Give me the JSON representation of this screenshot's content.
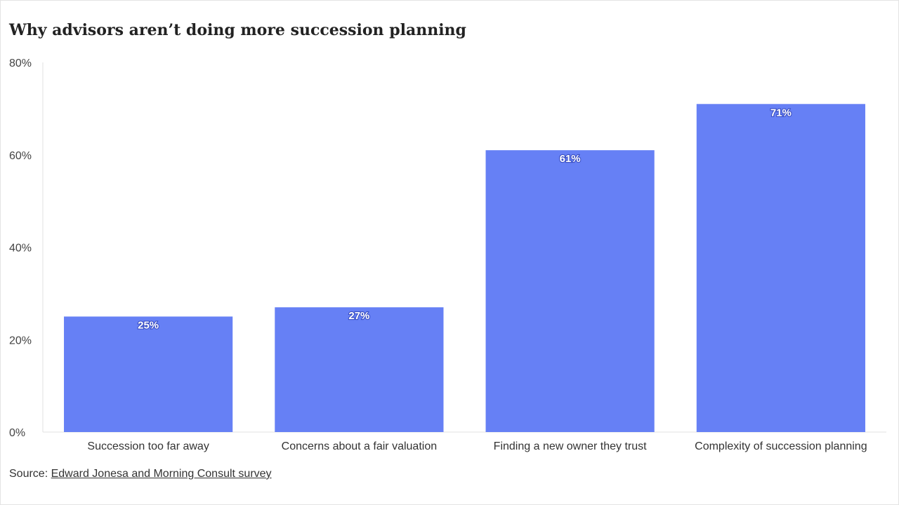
{
  "chart_data": {
    "type": "bar",
    "title": "Why advisors aren’t doing more succession planning",
    "categories": [
      "Succession too far away",
      "Concerns about a fair valuation",
      "Finding a new owner they trust",
      "Complexity of succession planning"
    ],
    "values": [
      25,
      27,
      61,
      71
    ],
    "value_labels": [
      "25%",
      "27%",
      "61%",
      "71%"
    ],
    "xlabel": "",
    "ylabel": "",
    "ylim": [
      0,
      80
    ],
    "yticks": [
      0,
      20,
      40,
      60,
      80
    ],
    "ytick_labels": [
      "0%",
      "20%",
      "40%",
      "60%",
      "80%"
    ],
    "grid": false,
    "bar_color": "#6680f5"
  },
  "source": {
    "prefix": "Source: ",
    "link_text": "Edward Jonesa and Morning Consult survey"
  }
}
